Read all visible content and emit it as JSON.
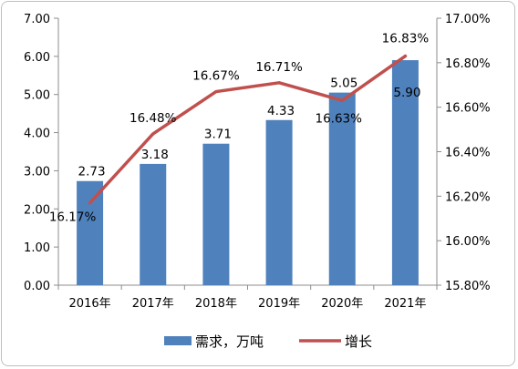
{
  "chart_data": {
    "type": "bar",
    "categories": [
      "2016年",
      "2017年",
      "2018年",
      "2019年",
      "2020年",
      "2021年"
    ],
    "series": [
      {
        "name": "需求，万吨",
        "kind": "bar",
        "axis": "left",
        "values": [
          2.73,
          3.18,
          3.71,
          4.33,
          5.05,
          5.9
        ],
        "labels": [
          "2.73",
          "3.18",
          "3.71",
          "4.33",
          "5.05",
          "5.90"
        ]
      },
      {
        "name": "增长",
        "kind": "line",
        "axis": "right",
        "values": [
          16.17,
          16.48,
          16.67,
          16.71,
          16.63,
          16.83
        ],
        "labels": [
          "16.17%",
          "16.48%",
          "16.67%",
          "16.71%",
          "16.63%",
          "16.83%"
        ]
      }
    ],
    "left_axis": {
      "ylim": [
        0,
        7
      ],
      "ticks": [
        "0.00",
        "1.00",
        "2.00",
        "3.00",
        "4.00",
        "5.00",
        "6.00",
        "7.00"
      ]
    },
    "right_axis": {
      "ylim": [
        15.8,
        17.0
      ],
      "ticks": [
        "15.80%",
        "16.00%",
        "16.20%",
        "16.40%",
        "16.60%",
        "16.80%",
        "17.00%"
      ]
    },
    "grid": false,
    "legend": "bottom",
    "colors": {
      "bar": "#4f81bd",
      "line": "#c0504d",
      "axis": "#8c8c8c"
    }
  }
}
